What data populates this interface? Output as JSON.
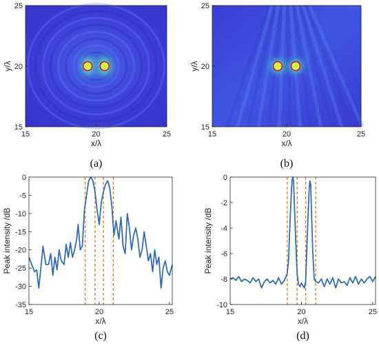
{
  "chart_data": [
    {
      "panel_label": "(a)",
      "type": "heatmap",
      "xlabel": "x/λ",
      "ylabel": "y/λ",
      "xlim": [
        15,
        25
      ],
      "ylim": [
        15,
        25
      ],
      "xticks": [
        "15",
        "20",
        "25"
      ],
      "yticks": [
        "15",
        "20",
        "25"
      ],
      "colors": {
        "background": "#3b3ad6",
        "hot": "#d9f23a",
        "target_ring": "#c2185b"
      },
      "targets": [
        {
          "x": 19.4,
          "y": 20.0
        },
        {
          "x": 20.6,
          "y": 20.0
        }
      ]
    },
    {
      "panel_label": "(b)",
      "type": "heatmap",
      "xlabel": "x/λ",
      "ylabel": "y/λ",
      "xlim": [
        15,
        25
      ],
      "ylim": [
        15,
        25
      ],
      "xticks": [
        "15",
        "20",
        "25"
      ],
      "yticks": [
        "15",
        "20",
        "25"
      ],
      "colors": {
        "background": "#3a48e0",
        "hot": "#d9f23a",
        "target_ring": "#c2185b"
      },
      "targets": [
        {
          "x": 19.4,
          "y": 20.0
        },
        {
          "x": 20.6,
          "y": 20.0
        }
      ]
    },
    {
      "panel_label": "(c)",
      "type": "line",
      "xlabel": "x/λ",
      "ylabel": "Peak intensity /dB",
      "xlim": [
        15,
        25.2
      ],
      "ylim": [
        -35,
        0
      ],
      "xticks": [
        "15",
        "20",
        "25"
      ],
      "yticks": [
        "0",
        "-5",
        "-10",
        "-15",
        "-20",
        "-25",
        "-30",
        "-35"
      ],
      "colors": {
        "line": "#2f6cb5",
        "guide": "#e07b1a"
      },
      "vlines": [
        19.0,
        19.7,
        20.3,
        21.0
      ],
      "series": [
        {
          "x": [
            15.0,
            15.2,
            15.4,
            15.55,
            15.7,
            15.85,
            16.0,
            16.2,
            16.4,
            16.55,
            16.7,
            16.85,
            17.0,
            17.15,
            17.3,
            17.5,
            17.65,
            17.8,
            17.95,
            18.1,
            18.25,
            18.4,
            18.5,
            18.65,
            18.8,
            18.95,
            19.1,
            19.25,
            19.4,
            19.55,
            19.7,
            19.85,
            20.0,
            20.15,
            20.3,
            20.45,
            20.6,
            20.75,
            20.9,
            21.05,
            21.2,
            21.4,
            21.55,
            21.7,
            21.85,
            22.0,
            22.15,
            22.3,
            22.45,
            22.6,
            22.75,
            22.9,
            23.05,
            23.2,
            23.35,
            23.5,
            23.65,
            23.8,
            23.95,
            24.1,
            24.25,
            24.4,
            24.55,
            24.7,
            24.85,
            25.0,
            25.2
          ],
          "y": [
            -22,
            -24,
            -26,
            -25.5,
            -30.5,
            -25,
            -19,
            -24,
            -24,
            -21,
            -27,
            -22,
            -25.5,
            -20,
            -23,
            -24,
            -18.5,
            -22,
            -18,
            -22,
            -20,
            -17,
            -13,
            -20,
            -19,
            -9,
            -5,
            -1,
            0,
            -1,
            -4,
            -9,
            -13,
            -7,
            -4,
            -2,
            -1,
            -3,
            -8,
            -16,
            -12,
            -17,
            -11,
            -19,
            -21,
            -10,
            -14,
            -20,
            -16,
            -14,
            -17,
            -22,
            -20,
            -15,
            -19,
            -23,
            -21,
            -26,
            -20,
            -24,
            -22,
            -30.5,
            -25,
            -23,
            -26,
            -27,
            -24
          ]
        }
      ]
    },
    {
      "panel_label": "(d)",
      "type": "line",
      "xlabel": "x/λ",
      "ylabel": "Peak intensity /dB",
      "xlim": [
        15,
        25.2
      ],
      "ylim": [
        -10,
        0
      ],
      "xticks": [
        "15",
        "20",
        "25"
      ],
      "yticks": [
        "0",
        "-2",
        "-4",
        "-6",
        "-8",
        "-10"
      ],
      "colors": {
        "line": "#2f6cb5",
        "guide": "#e07b1a"
      },
      "vlines": [
        19.0,
        19.7,
        20.3,
        21.0
      ],
      "series": [
        {
          "x": [
            15.0,
            15.2,
            15.4,
            15.6,
            15.8,
            16.0,
            16.2,
            16.4,
            16.6,
            16.8,
            17.0,
            17.2,
            17.4,
            17.6,
            17.8,
            18.0,
            18.2,
            18.4,
            18.6,
            18.8,
            19.0,
            19.1,
            19.2,
            19.3,
            19.35,
            19.4,
            19.45,
            19.5,
            19.6,
            19.7,
            19.8,
            19.9,
            20.0,
            20.1,
            20.2,
            20.3,
            20.4,
            20.5,
            20.55,
            20.6,
            20.65,
            20.7,
            20.8,
            20.9,
            21.0,
            21.2,
            21.4,
            21.6,
            21.8,
            22.0,
            22.2,
            22.4,
            22.6,
            22.8,
            23.0,
            23.2,
            23.4,
            23.6,
            23.8,
            24.0,
            24.2,
            24.4,
            24.6,
            24.8,
            25.0,
            25.2
          ],
          "y": [
            -8.0,
            -7.9,
            -8.1,
            -7.8,
            -8.2,
            -8.0,
            -8.1,
            -8.3,
            -7.9,
            -8.2,
            -8.0,
            -8.7,
            -8.2,
            -8.0,
            -8.3,
            -8.1,
            -8.4,
            -7.9,
            -8.4,
            -8.1,
            -7.6,
            -6.5,
            -3.5,
            -1.0,
            -0.2,
            0.0,
            -0.4,
            -2.0,
            -5.0,
            -7.6,
            -8.4,
            -8.6,
            -8.3,
            -8.5,
            -8.7,
            -8.2,
            -5.0,
            -2.0,
            -0.8,
            -0.3,
            -0.6,
            -2.5,
            -6.0,
            -8.0,
            -8.2,
            -8.3,
            -8.0,
            -8.6,
            -8.0,
            -8.4,
            -7.9,
            -8.7,
            -8.0,
            -8.3,
            -8.2,
            -8.5,
            -7.9,
            -8.3,
            -7.8,
            -8.4,
            -8.0,
            -8.3,
            -8.0,
            -7.8,
            -8.2,
            -7.8
          ]
        }
      ]
    }
  ]
}
